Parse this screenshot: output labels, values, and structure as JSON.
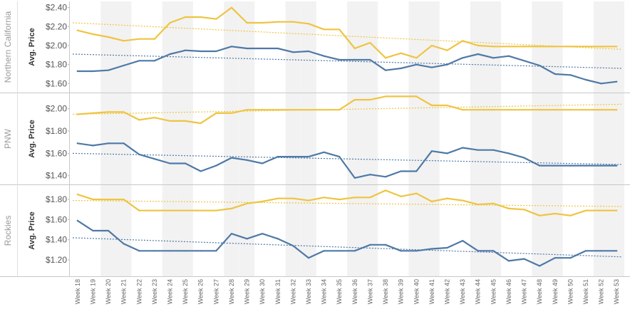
{
  "colors": {
    "yellow": "#EFC441",
    "blue": "#4E79A7",
    "band": "#F2F2F2",
    "divider": "#C8C8C8"
  },
  "chart_data": {
    "type": "line",
    "ylabel": "Avg. Price",
    "x": [
      "Week 18",
      "Week 19",
      "Week 20",
      "Week 21",
      "Week 22",
      "Week 23",
      "Week 24",
      "Week 25",
      "Week 26",
      "Week 27",
      "Week 28",
      "Week 29",
      "Week 30",
      "Week 31",
      "Week 32",
      "Week 33",
      "Week 34",
      "Week 35",
      "Week 36",
      "Week 37",
      "Week 38",
      "Week 39",
      "Week 40",
      "Week 41",
      "Week 42",
      "Week 43",
      "Week 44",
      "Week 45",
      "Week 46",
      "Week 47",
      "Week 48",
      "Week 49",
      "Week 50",
      "Week 51",
      "Week 52",
      "Week 53"
    ],
    "trend_lines": true,
    "panels": [
      {
        "region": "Northern California",
        "ylim": [
          1.55,
          2.42
        ],
        "yticks": [
          "$2.40",
          "$2.20",
          "$2.00",
          "$1.80",
          "$1.60"
        ],
        "ytick_values": [
          2.4,
          2.2,
          2.0,
          1.8,
          1.6
        ],
        "series": [
          {
            "color": "yellow",
            "values": [
              2.16,
              2.12,
              2.09,
              2.05,
              2.07,
              2.07,
              2.24,
              2.3,
              2.3,
              2.28,
              2.4,
              2.24,
              2.24,
              2.25,
              2.25,
              2.23,
              2.17,
              2.17,
              1.97,
              2.03,
              1.87,
              1.92,
              1.87,
              2.0,
              1.95,
              2.05,
              2.0,
              1.99,
              1.99,
              1.99,
              1.99,
              1.99,
              1.99,
              1.99,
              1.99,
              1.99
            ],
            "trend": [
              2.24,
              1.96
            ]
          },
          {
            "color": "blue",
            "values": [
              1.73,
              1.73,
              1.74,
              1.79,
              1.84,
              1.84,
              1.91,
              1.95,
              1.94,
              1.94,
              1.99,
              1.97,
              1.97,
              1.97,
              1.93,
              1.94,
              1.89,
              1.85,
              1.85,
              1.85,
              1.74,
              1.76,
              1.8,
              1.77,
              1.8,
              1.87,
              1.91,
              1.87,
              1.89,
              1.84,
              1.79,
              1.7,
              1.69,
              1.64,
              1.6,
              1.62
            ],
            "trend": [
              1.91,
              1.76
            ]
          }
        ]
      },
      {
        "region": "PNW",
        "ylim": [
          1.36,
          2.1
        ],
        "yticks": [
          "$2.00",
          "$1.80",
          "$1.60",
          "$1.40"
        ],
        "ytick_values": [
          2.0,
          1.8,
          1.6,
          1.4
        ],
        "series": [
          {
            "color": "yellow",
            "values": [
              1.95,
              1.96,
              1.97,
              1.97,
              1.9,
              1.92,
              1.89,
              1.89,
              1.87,
              1.96,
              1.96,
              1.99,
              1.99,
              1.99,
              1.99,
              1.99,
              1.99,
              1.99,
              2.08,
              2.08,
              2.11,
              2.11,
              2.11,
              2.03,
              2.03,
              1.99,
              1.99,
              1.99,
              1.99,
              1.99,
              1.99,
              1.99,
              1.99,
              1.99,
              1.99,
              1.99
            ],
            "trend": [
              1.95,
              2.04
            ]
          },
          {
            "color": "blue",
            "values": [
              1.69,
              1.67,
              1.69,
              1.69,
              1.59,
              1.55,
              1.51,
              1.51,
              1.44,
              1.49,
              1.56,
              1.54,
              1.51,
              1.57,
              1.57,
              1.57,
              1.61,
              1.57,
              1.38,
              1.41,
              1.39,
              1.44,
              1.44,
              1.62,
              1.6,
              1.65,
              1.63,
              1.63,
              1.6,
              1.56,
              1.49,
              1.49,
              1.49,
              1.49,
              1.49,
              1.49
            ],
            "trend": [
              1.6,
              1.5
            ]
          }
        ]
      },
      {
        "region": "Rockies",
        "ylim": [
          1.08,
          1.9
        ],
        "yticks": [
          "$1.80",
          "$1.60",
          "$1.40",
          "$1.20"
        ],
        "ytick_values": [
          1.8,
          1.6,
          1.4,
          1.2
        ],
        "series": [
          {
            "color": "yellow",
            "values": [
              1.85,
              1.8,
              1.8,
              1.8,
              1.69,
              1.69,
              1.69,
              1.69,
              1.69,
              1.69,
              1.71,
              1.76,
              1.78,
              1.81,
              1.81,
              1.79,
              1.82,
              1.8,
              1.82,
              1.82,
              1.89,
              1.83,
              1.86,
              1.78,
              1.81,
              1.79,
              1.75,
              1.76,
              1.71,
              1.7,
              1.64,
              1.66,
              1.64,
              1.69,
              1.69,
              1.69
            ],
            "trend": [
              1.79,
              1.73
            ]
          },
          {
            "color": "blue",
            "values": [
              1.59,
              1.49,
              1.49,
              1.36,
              1.29,
              1.29,
              1.29,
              1.29,
              1.29,
              1.29,
              1.46,
              1.41,
              1.46,
              1.41,
              1.34,
              1.22,
              1.29,
              1.29,
              1.29,
              1.35,
              1.35,
              1.29,
              1.29,
              1.31,
              1.32,
              1.39,
              1.29,
              1.29,
              1.19,
              1.21,
              1.14,
              1.22,
              1.22,
              1.29,
              1.29,
              1.29
            ],
            "trend": [
              1.42,
              1.23
            ]
          }
        ]
      }
    ]
  }
}
